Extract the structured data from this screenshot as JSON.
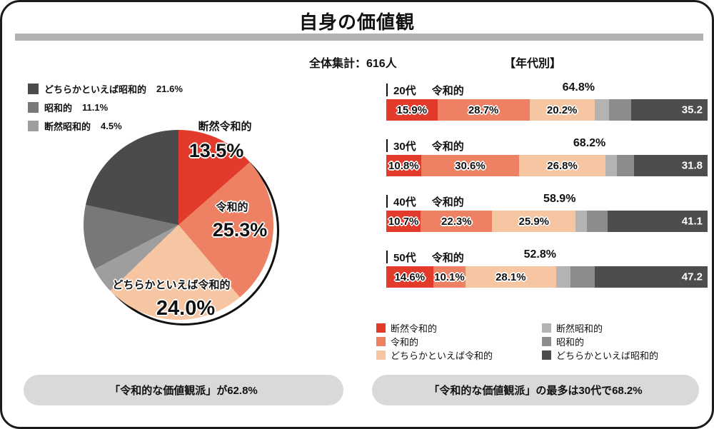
{
  "page": {
    "title": "自身の価値観",
    "total_label": "全体集計：616人",
    "by_age_label": "【年代別】",
    "footer_left": "「令和的な価値観派」が62.8%",
    "footer_right": "「令和的な価値観派」の最多は30代で68.2%"
  },
  "colors": {
    "dannen_reiwa": "#e23a2b",
    "reiwa": "#ee8164",
    "dochira_reiwa": "#f6c6a3",
    "dannen_showa_pie": "#9e9e9e",
    "showa_pie": "#787878",
    "dochira_showa_pie": "#4b4b4b",
    "dannen_showa_bar": "#b3b3b3",
    "showa_bar": "#8c8c8c",
    "dochira_showa_bar": "#4d4d4d",
    "title_rule": "#b1b1b1",
    "pill_bg": "#d9d9d9"
  },
  "chart_data": [
    {
      "type": "pie",
      "title": "自身の価値観",
      "total_label": "全体集計：616人",
      "segments": [
        {
          "label": "断然令和的",
          "value": 13.5,
          "color": "#e23a2b"
        },
        {
          "label": "令和的",
          "value": 25.3,
          "color": "#ee8164"
        },
        {
          "label": "どちらかといえば令和的",
          "value": 24.0,
          "color": "#f6c6a3"
        },
        {
          "label": "断然昭和的",
          "value": 4.5,
          "color": "#9e9e9e"
        },
        {
          "label": "昭和的",
          "value": 11.1,
          "color": "#787878"
        },
        {
          "label": "どちらかといえば昭和的",
          "value": 21.6,
          "color": "#4b4b4b"
        }
      ]
    },
    {
      "type": "bar",
      "stacked": true,
      "orientation": "horizontal",
      "title": "【年代別】",
      "series": [
        "断然令和的",
        "令和的",
        "どちらかといえば令和的",
        "断然昭和的",
        "昭和的",
        "どちらかといえば昭和的"
      ],
      "legend": [
        {
          "label": "断然令和的",
          "color": "#e23a2b"
        },
        {
          "label": "令和的",
          "color": "#ee8164"
        },
        {
          "label": "どちらかといえば令和的",
          "color": "#f6c6a3"
        },
        {
          "label": "断然昭和的",
          "color": "#b3b3b3"
        },
        {
          "label": "昭和的",
          "color": "#8c8c8c"
        },
        {
          "label": "どちらかといえば昭和的",
          "color": "#4d4d4d"
        }
      ],
      "rows": [
        {
          "category": "20代",
          "group_label": "令和的",
          "reiwa_total": 64.8,
          "labeled_values": [
            15.9,
            28.7,
            20.2
          ],
          "showa_total": 35.2,
          "showa_split_estimated": [
            4.5,
            7.0,
            23.7
          ]
        },
        {
          "category": "30代",
          "group_label": "令和的",
          "reiwa_total": 68.2,
          "labeled_values": [
            10.8,
            30.6,
            26.8
          ],
          "showa_total": 31.8,
          "showa_split_estimated": [
            3.5,
            5.5,
            22.8
          ]
        },
        {
          "category": "40代",
          "group_label": "令和的",
          "reiwa_total": 58.9,
          "labeled_values": [
            10.7,
            22.3,
            25.9
          ],
          "showa_total": 41.1,
          "showa_split_estimated": [
            3.5,
            6.5,
            31.1
          ]
        },
        {
          "category": "50代",
          "group_label": "令和的",
          "reiwa_total": 52.8,
          "labeled_values": [
            14.6,
            10.1,
            28.1
          ],
          "showa_total": 47.2,
          "showa_split_estimated": [
            4.5,
            7.5,
            35.2
          ]
        }
      ]
    }
  ]
}
